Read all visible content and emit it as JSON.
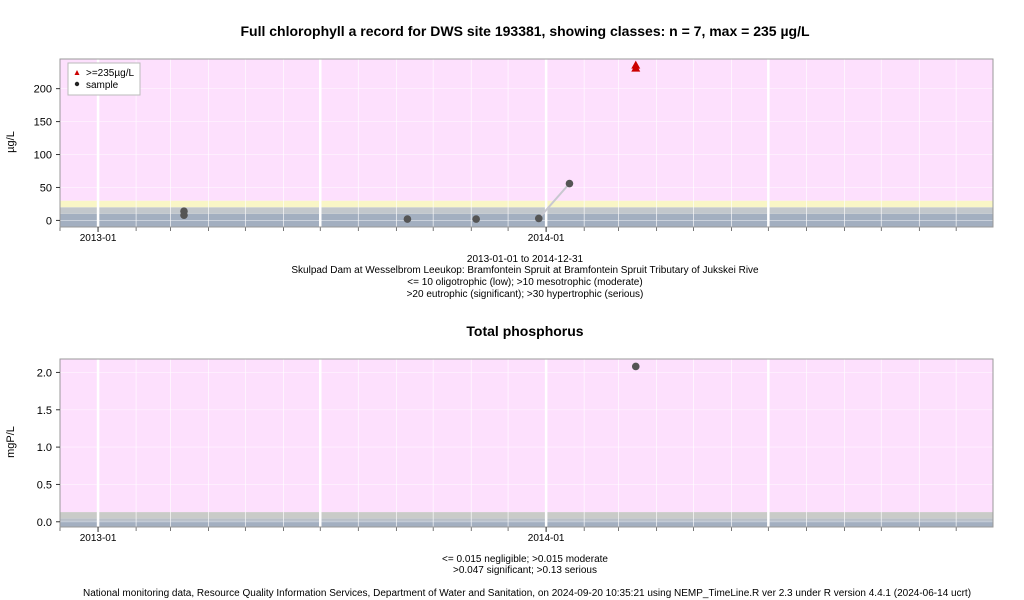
{
  "chart_data": [
    {
      "type": "scatter",
      "title": "Full chlorophyll a record for DWS site 193381, showing classes: n = 7, max = 235 µg/L",
      "ylabel": "µg/L",
      "xlabel": "",
      "ylim": [
        -10,
        245
      ],
      "xlim": [
        "2012-12-01",
        "2014-12-31"
      ],
      "grid": true,
      "legend_position": "top-left",
      "x_ticks": [
        {
          "date": "2013-01-01",
          "label": "2013-01"
        },
        {
          "date": "2014-01-01",
          "label": "2014-01"
        }
      ],
      "y_ticks": [
        0,
        50,
        100,
        150,
        200
      ],
      "legend": [
        {
          "label": ">=235µg/L",
          "marker": "triangle",
          "color": "#cc0000"
        },
        {
          "label": "sample",
          "marker": "circle",
          "color": "#222222"
        }
      ],
      "bands": [
        {
          "from": -10,
          "to": 10,
          "color": "#a3afc0"
        },
        {
          "from": 10,
          "to": 20,
          "color": "#c2c7cc"
        },
        {
          "from": 20,
          "to": 30,
          "color": "#f9f6c6"
        },
        {
          "from": 30,
          "to": 245,
          "color": "#fde0fd"
        }
      ],
      "series": [
        {
          "name": "sample",
          "color": "#555555",
          "points": [
            {
              "x": "2013-03-12",
              "y": 8
            },
            {
              "x": "2013-03-12",
              "y": 14
            },
            {
              "x": "2013-09-10",
              "y": 2
            },
            {
              "x": "2013-11-05",
              "y": 2
            },
            {
              "x": "2013-12-26",
              "y": 3
            },
            {
              "x": "2014-01-20",
              "y": 56
            }
          ]
        },
        {
          "name": ">=235µg/L",
          "color": "#cc0000",
          "points": [
            {
              "x": "2014-03-15",
              "y": 235
            }
          ]
        }
      ],
      "segments": [
        {
          "from": {
            "x": "2013-12-26",
            "y": 3
          },
          "to": {
            "x": "2014-01-20",
            "y": 56
          }
        }
      ],
      "notes": [
        "2013-01-01 to 2014-12-31",
        "Skulpad Dam at Wesselbrom Leeukop: Bramfontein Spruit at Bramfontein Spruit Tributary of Jukskei Rive",
        "<= 10 oligotrophic (low); >10 mesotrophic (moderate)",
        ">20 eutrophic (significant); >30 hypertrophic (serious)"
      ]
    },
    {
      "type": "scatter",
      "title": "Total phosphorus",
      "ylabel": "mgP/L",
      "xlabel": "",
      "ylim": [
        -0.07,
        2.18
      ],
      "xlim": [
        "2012-12-01",
        "2014-12-31"
      ],
      "grid": true,
      "x_ticks": [
        {
          "date": "2013-01-01",
          "label": "2013-01"
        },
        {
          "date": "2014-01-01",
          "label": "2014-01"
        }
      ],
      "y_ticks": [
        0.0,
        0.5,
        1.0,
        1.5,
        2.0
      ],
      "y_tick_labels": [
        "0.0",
        "0.5",
        "1.0",
        "1.5",
        "2.0"
      ],
      "bands": [
        {
          "from": -0.07,
          "to": 0.015,
          "color": "#a3afc0"
        },
        {
          "from": 0.015,
          "to": 0.047,
          "color": "#b9bfc7"
        },
        {
          "from": 0.047,
          "to": 0.13,
          "color": "#c9cbc8"
        },
        {
          "from": 0.13,
          "to": 2.18,
          "color": "#fde0fd"
        }
      ],
      "series": [
        {
          "name": "sample",
          "color": "#555555",
          "points": [
            {
              "x": "2014-03-15",
              "y": 2.08
            }
          ]
        }
      ],
      "notes": [
        "<= 0.015 negligible; >0.015 moderate",
        ">0.047 significant; >0.13 serious"
      ]
    }
  ],
  "footer": "National monitoring data, Resource Quality Information Services, Department of Water and Sanitation, on 2024-09-20 10:35:21 using NEMP_TimeLine.R ver 2.3 under R version 4.4.1 (2024-06-14 ucrt)"
}
